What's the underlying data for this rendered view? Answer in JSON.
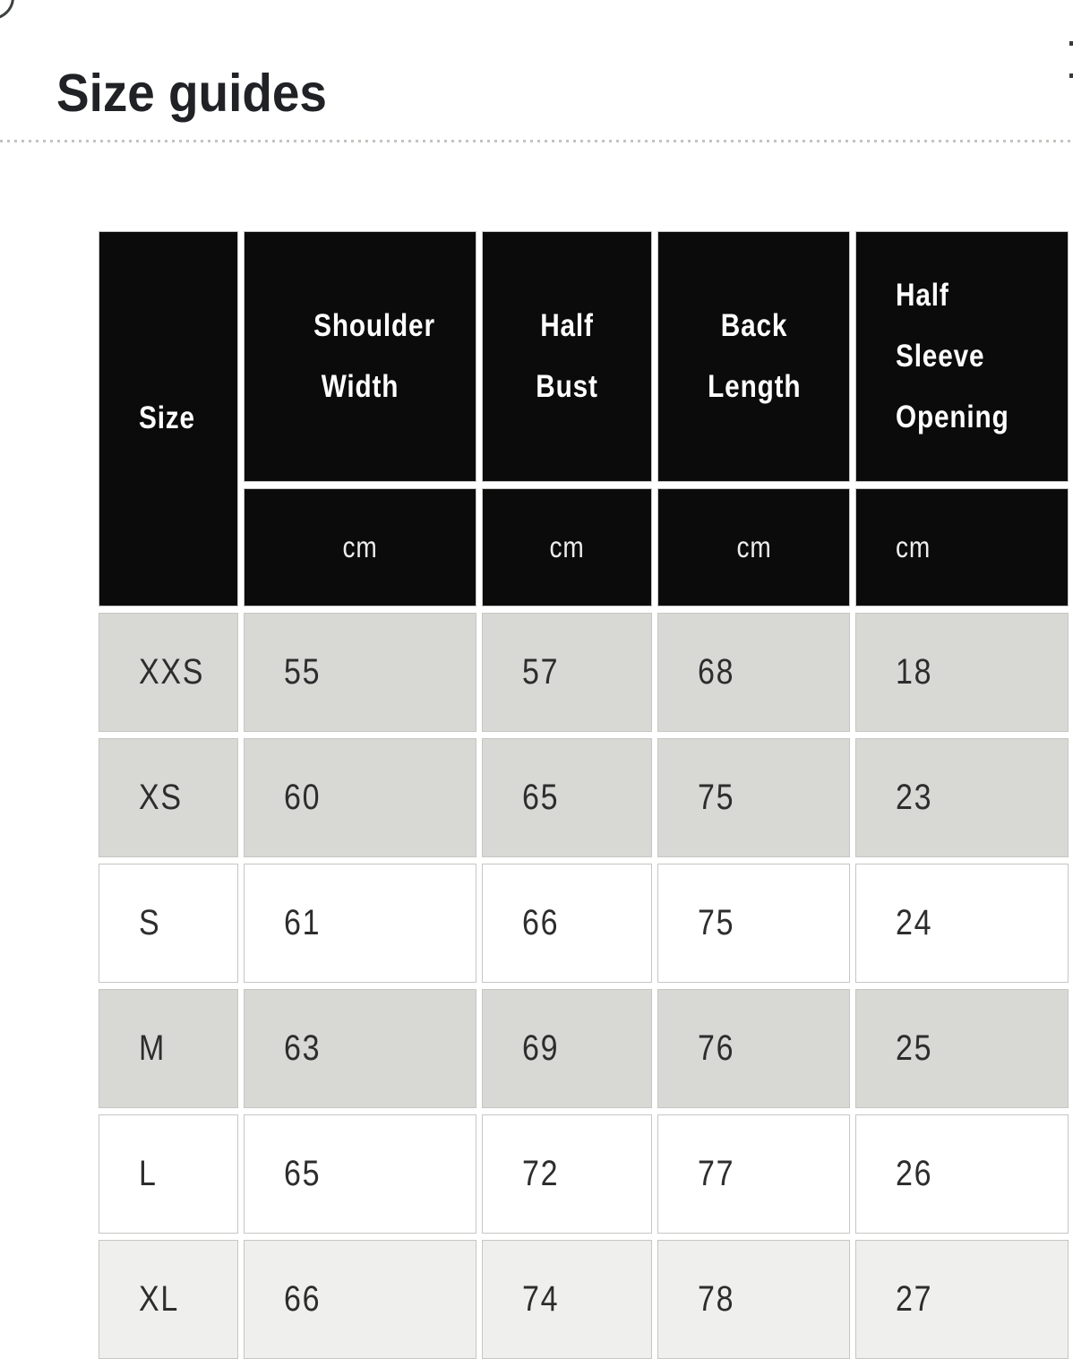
{
  "page": {
    "title": "Size guides"
  },
  "table": {
    "corner_label": "Size",
    "columns": [
      {
        "label": "Shoulder Width",
        "unit": "cm"
      },
      {
        "label": "Half Bust",
        "unit": "cm"
      },
      {
        "label": "Back Length",
        "unit": "cm"
      },
      {
        "label": "Half Sleeve Opening",
        "unit": "cm"
      }
    ],
    "rows": [
      {
        "size": "XXS",
        "values": [
          "55",
          "57",
          "68",
          "18"
        ]
      },
      {
        "size": "XS",
        "values": [
          "60",
          "65",
          "75",
          "23"
        ]
      },
      {
        "size": "S",
        "values": [
          "61",
          "66",
          "75",
          "24"
        ]
      },
      {
        "size": "M",
        "values": [
          "63",
          "69",
          "76",
          "25"
        ]
      },
      {
        "size": "L",
        "values": [
          "65",
          "72",
          "77",
          "26"
        ]
      },
      {
        "size": "XL",
        "values": [
          "66",
          "74",
          "78",
          "27"
        ]
      }
    ]
  },
  "colors": {
    "header_bg": "#0b0b0b",
    "header_text": "#ffffff",
    "row_gray": "#d8d8d5",
    "row_white": "#ffffff",
    "row_light_gray": "#efefed",
    "cell_border": "#c6c6c3",
    "data_text": "#2d2d2d",
    "title_text": "#212226",
    "divider_dots": "#c3c3c0"
  }
}
